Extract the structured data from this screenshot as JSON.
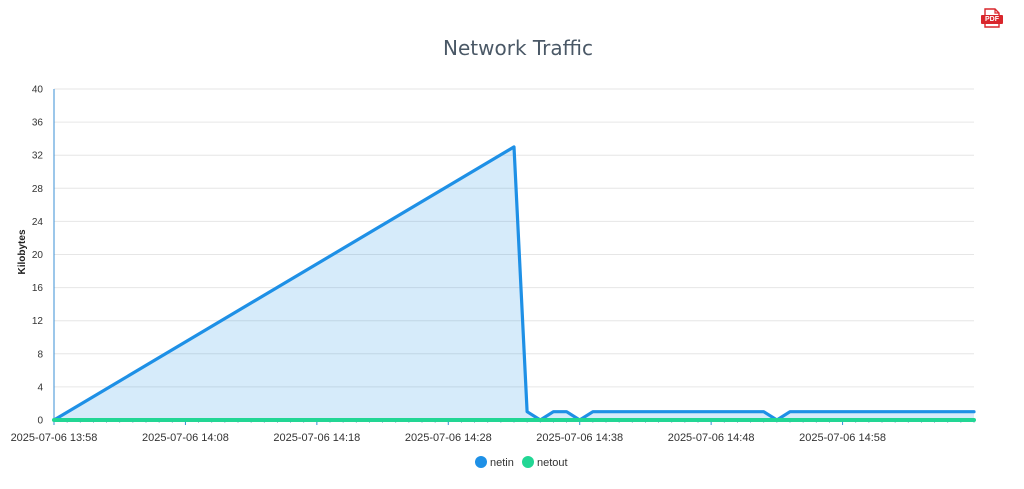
{
  "export": {
    "pdf_label": "PDF"
  },
  "chart_data": {
    "type": "area",
    "title": "Network Traffic",
    "xlabel": "",
    "ylabel": "Kilobytes",
    "ylim": [
      0,
      40
    ],
    "yticks": [
      0,
      4,
      8,
      12,
      16,
      20,
      24,
      28,
      32,
      36,
      40
    ],
    "xlim": [
      "2025-07-06 13:58",
      "2025-07-06 15:08"
    ],
    "xticks": [
      "2025-07-06 13:58",
      "2025-07-06 14:08",
      "2025-07-06 14:18",
      "2025-07-06 14:28",
      "2025-07-06 14:38",
      "2025-07-06 14:48",
      "2025-07-06 14:58"
    ],
    "grid": true,
    "legend_position": "bottom-center",
    "series": [
      {
        "name": "netin",
        "color": "#1e90e6",
        "x": [
          "2025-07-06 13:58",
          "2025-07-06 14:33",
          "2025-07-06 14:34",
          "2025-07-06 14:35",
          "2025-07-06 14:36",
          "2025-07-06 14:37",
          "2025-07-06 14:38",
          "2025-07-06 14:39",
          "2025-07-06 14:40",
          "2025-07-06 14:41",
          "2025-07-06 14:42",
          "2025-07-06 14:43",
          "2025-07-06 14:44",
          "2025-07-06 14:45",
          "2025-07-06 14:46",
          "2025-07-06 14:47",
          "2025-07-06 14:48",
          "2025-07-06 14:49",
          "2025-07-06 14:50",
          "2025-07-06 14:51",
          "2025-07-06 14:52",
          "2025-07-06 14:53",
          "2025-07-06 14:54",
          "2025-07-06 14:55",
          "2025-07-06 14:56",
          "2025-07-06 14:57",
          "2025-07-06 14:58",
          "2025-07-06 14:59",
          "2025-07-06 15:00",
          "2025-07-06 15:01",
          "2025-07-06 15:02",
          "2025-07-06 15:03",
          "2025-07-06 15:04",
          "2025-07-06 15:05",
          "2025-07-06 15:06",
          "2025-07-06 15:07",
          "2025-07-06 15:08"
        ],
        "values": [
          0,
          33,
          1,
          0,
          1,
          1,
          0,
          1,
          1,
          1,
          1,
          1,
          1,
          1,
          1,
          1,
          1,
          1,
          1,
          1,
          1,
          0,
          1,
          1,
          1,
          1,
          1,
          1,
          1,
          1,
          1,
          1,
          1,
          1,
          1,
          1,
          1
        ]
      },
      {
        "name": "netout",
        "color": "#22d694",
        "x": [
          "2025-07-06 13:58",
          "2025-07-06 14:33",
          "2025-07-06 15:08"
        ],
        "values": [
          0,
          0,
          0
        ]
      }
    ]
  }
}
